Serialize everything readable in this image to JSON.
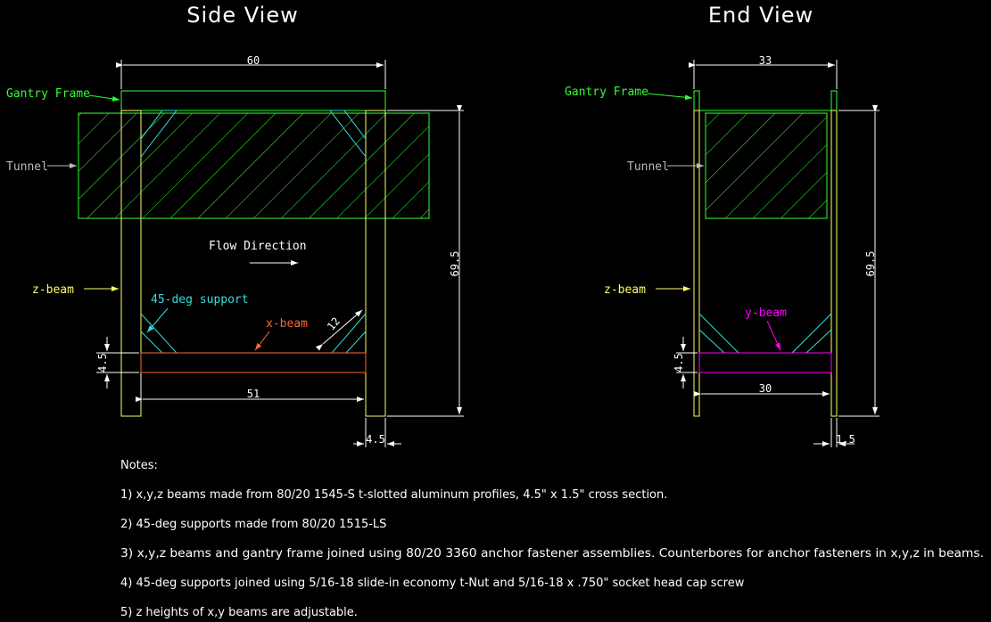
{
  "side_view": {
    "title": "Side View",
    "labels": {
      "gantry_frame": "Gantry Frame",
      "tunnel": "Tunnel",
      "flow_direction": "Flow Direction",
      "z_beam": "z-beam",
      "support": "45-deg support",
      "x_beam": "x-beam"
    },
    "dims": {
      "width": "60",
      "height": "69.5",
      "beam_length": "51",
      "beam_thick": "4.5",
      "post_width": "4.5",
      "diag": "12"
    }
  },
  "end_view": {
    "title": "End View",
    "labels": {
      "gantry_frame": "Gantry Frame",
      "tunnel": "Tunnel",
      "z_beam": "z-beam",
      "y_beam": "y-beam"
    },
    "dims": {
      "width": "33",
      "height": "69.5",
      "beam_length": "30",
      "beam_thick": "4.5",
      "post_width": "1.5"
    }
  },
  "notes": {
    "heading": "Notes:",
    "items": [
      "1) x,y,z beams made from 80/20 1545-S t-slotted aluminum profiles, 4.5\" x 1.5\" cross section.",
      "2) 45-deg supports made from 80/20 1515-LS",
      "3) x,y,z beams and gantry frame joined using 80/20 3360 anchor fastener assemblies. Counterbores for anchor fasteners in x,y,z in beams.",
      "4) 45-deg supports joined using 5/16-18 slide-in economy t-Nut and 5/16-18 x .750\" socket head cap screw",
      "5) z heights of x,y beams are adjustable."
    ]
  },
  "colors": {
    "frame": "#ffff66",
    "gantry": "#33ff33",
    "tunnel": "#33ff33",
    "support": "#33dddd",
    "x_beam": "#ff6633",
    "y_beam": "#ff00ff",
    "dim": "#ffffff",
    "tunnel_label": "#bbbbbb"
  }
}
